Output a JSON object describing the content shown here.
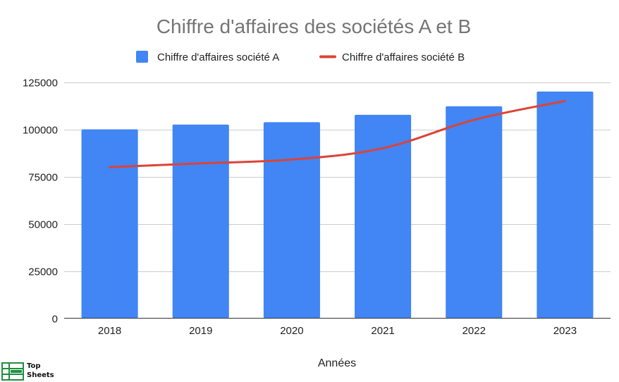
{
  "chart_data": {
    "type": "bar",
    "title": "Chiffre d'affaires des sociétés A et B",
    "xlabel": "Années",
    "ylabel": "",
    "categories": [
      "2018",
      "2019",
      "2020",
      "2021",
      "2022",
      "2023"
    ],
    "ylim": [
      0,
      125000
    ],
    "yticks": [
      "0",
      "25000",
      "50000",
      "75000",
      "100000",
      "125000"
    ],
    "grid": true,
    "legend_position": "top",
    "series": [
      {
        "name": "Chiffre d'affaires société A",
        "type": "bar",
        "color": "#4285f4",
        "values": [
          100000,
          102500,
          103800,
          107700,
          112200,
          120000
        ]
      },
      {
        "name": "Chiffre d'affaires société B",
        "type": "line",
        "color": "#db4437",
        "values": [
          80000,
          82000,
          84000,
          90000,
          105000,
          115000
        ]
      }
    ]
  },
  "logo": {
    "line1": "Top",
    "line2": "Sheets",
    "icon": "spreadsheet-icon",
    "color": "#1e8e3e"
  }
}
